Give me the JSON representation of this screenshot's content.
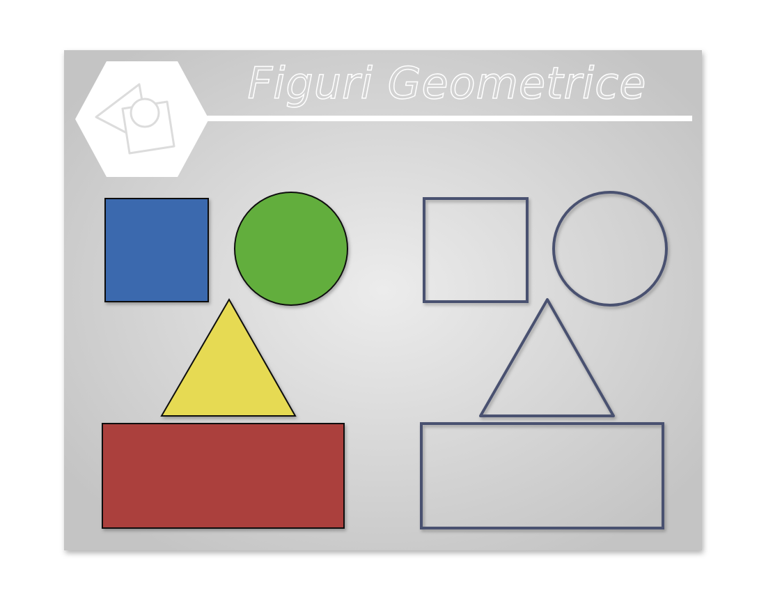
{
  "slide": {
    "title": "Figuri Geometrice",
    "logo_icon": "geometric-shapes-hexagon-logo"
  },
  "colors": {
    "background_center": "#ececec",
    "background_edge": "#c4c4c4",
    "title_fill": "#d2d2d2",
    "title_stroke": "#ffffff",
    "square_fill": "#3a69ae",
    "circle_fill": "#62ae3d",
    "triangle_fill": "#e6da52",
    "rectangle_fill": "#ab413e",
    "outline_color": "#4a5170"
  },
  "shapes": {
    "filled": [
      "square",
      "circle",
      "triangle",
      "rectangle"
    ],
    "outlined": [
      "square",
      "circle",
      "triangle",
      "rectangle"
    ]
  }
}
